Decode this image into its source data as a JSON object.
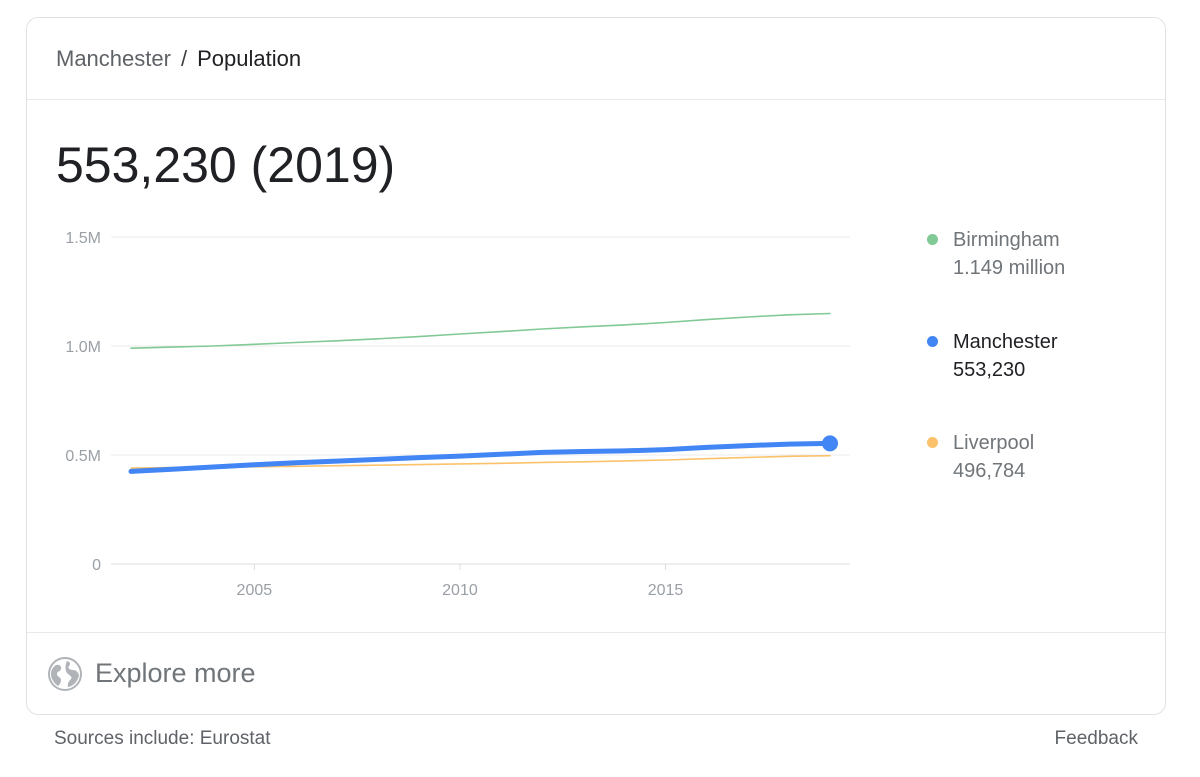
{
  "breadcrumb": {
    "parent": "Manchester",
    "separator": "/",
    "current": "Population"
  },
  "headline": "553,230 (2019)",
  "chart_data": {
    "type": "line",
    "title": "",
    "xlabel": "",
    "ylabel": "",
    "xlim": [
      2002,
      2019
    ],
    "ylim": [
      0,
      1500000
    ],
    "x_ticks": [
      2005,
      2010,
      2015
    ],
    "x_tick_labels": [
      "2005",
      "2010",
      "2015"
    ],
    "y_ticks": [
      0,
      500000,
      1000000,
      1500000
    ],
    "y_tick_labels": [
      "0",
      "0.5M",
      "1.0M",
      "1.5M"
    ],
    "grid": true,
    "legend_position": "right",
    "x": [
      2002,
      2003,
      2004,
      2005,
      2006,
      2007,
      2008,
      2009,
      2010,
      2011,
      2012,
      2013,
      2014,
      2015,
      2016,
      2017,
      2018,
      2019
    ],
    "series": [
      {
        "name": "Birmingham",
        "color": "#81c995",
        "highlighted": false,
        "values": [
          990000,
          995000,
          1000000,
          1008000,
          1016000,
          1024000,
          1033000,
          1043000,
          1055000,
          1066000,
          1078000,
          1088000,
          1097000,
          1108000,
          1121000,
          1133000,
          1143000,
          1149000
        ]
      },
      {
        "name": "Manchester",
        "color": "#4285f4",
        "highlighted": true,
        "values": [
          425000,
          435000,
          445000,
          455000,
          464000,
          472000,
          480000,
          488000,
          495000,
          503000,
          512000,
          516000,
          519000,
          525000,
          535000,
          543000,
          550000,
          553230
        ]
      },
      {
        "name": "Liverpool",
        "color": "#fbc26b",
        "highlighted": false,
        "values": [
          440000,
          442000,
          444000,
          446000,
          448000,
          451000,
          453000,
          456000,
          459000,
          462000,
          466000,
          469000,
          473000,
          477000,
          483000,
          489000,
          494000,
          496784
        ]
      }
    ]
  },
  "legend": [
    {
      "name": "Birmingham",
      "value": "1.149 million",
      "color": "#81c995"
    },
    {
      "name": "Manchester",
      "value": "553,230",
      "color": "#4285f4"
    },
    {
      "name": "Liverpool",
      "value": "496,784",
      "color": "#fbc26b"
    }
  ],
  "explore": {
    "label": "Explore more",
    "icon": "globe-icon"
  },
  "footer": {
    "source": "Sources include: Eurostat",
    "feedback": "Feedback"
  }
}
